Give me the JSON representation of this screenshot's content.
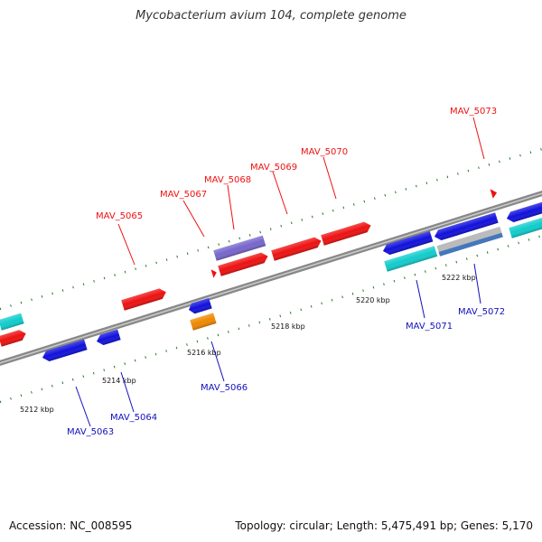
{
  "title": "Mycobacterium avium 104, complete genome",
  "footer": {
    "accession": "Accession: NC_008595",
    "summary": "Topology: circular; Length: 5,475,491 bp; Genes: 5,170"
  },
  "colors": {
    "forward": "#ee1111",
    "reverse": "#1111dd",
    "cyan": "#11cccc",
    "orange": "#ee8800",
    "purple": "#7766cc",
    "steel": "#4477bb",
    "silver": "#bbbbbb",
    "backbone": "#888888",
    "tick": "#227722"
  },
  "scale_labels": [
    "5212 kbp",
    "5214 kbp",
    "5216 kbp",
    "5218 kbp",
    "5220 kbp",
    "5222 kbp"
  ],
  "gene_labels": {
    "top": [
      "MAV_5065",
      "MAV_5067",
      "MAV_5068",
      "MAV_5069",
      "MAV_5070",
      "MAV_5073"
    ],
    "bottom": [
      "MAV_5063",
      "MAV_5064",
      "MAV_5066",
      "MAV_5071",
      "MAV_5072"
    ]
  }
}
